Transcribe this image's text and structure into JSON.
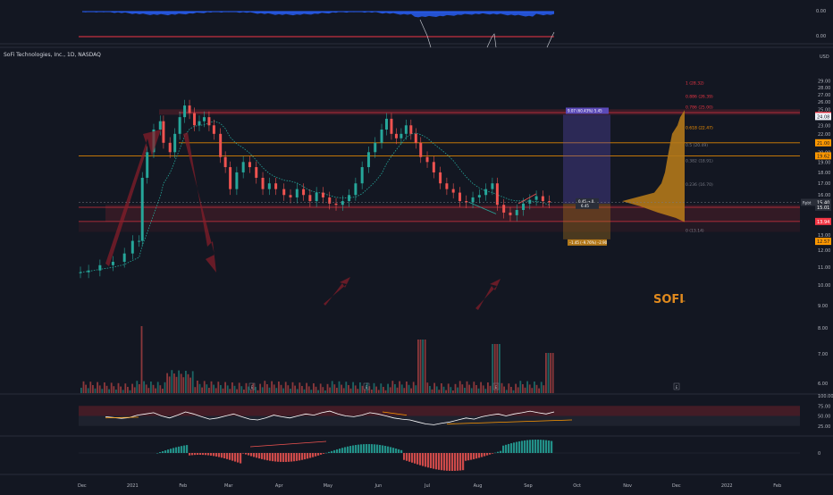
{
  "header": {
    "symbol_title": "SoFi Technologies, Inc., 1D, NASDAQ",
    "currency": "USD",
    "brand_watermark": "SOFI",
    "brand_dash": "-"
  },
  "top_panes": {
    "pane1_value": "0.00",
    "pane2_value": "0.00"
  },
  "chart_data": {
    "type": "candlestick",
    "title": "SoFi Technologies, Inc., 1D, NASDAQ",
    "y_axis": {
      "min": 6.0,
      "max": 29.0,
      "scale": "log",
      "unit": "USD",
      "ticks": [
        "29.00",
        "28.00",
        "27.00",
        "26.00",
        "25.00",
        "24.00",
        "23.00",
        "22.00",
        "21.00",
        "20.00",
        "19.00",
        "18.00",
        "17.00",
        "16.00",
        "15.00",
        "14.00",
        "13.00",
        "12.00",
        "11.00",
        "10.00",
        "9.00",
        "8.00",
        "7.00",
        "6.00"
      ]
    },
    "x_axis": {
      "ticks": [
        "Dec",
        "2021",
        "Feb",
        "Mar",
        "Apr",
        "May",
        "Jun",
        "Jul",
        "Aug",
        "Sep",
        "Oct",
        "Nov",
        "Dec",
        "2022",
        "Feb"
      ]
    },
    "price_path": [
      [
        "2020-11-30",
        10.7
      ],
      [
        "2020-12-05",
        10.8
      ],
      [
        "2020-12-12",
        11.1
      ],
      [
        "2020-12-20",
        11.3
      ],
      [
        "2020-12-27",
        11.8
      ],
      [
        "2021-01-01",
        12.6
      ],
      [
        "2021-01-05",
        12.6
      ],
      [
        "2021-01-07",
        17.5
      ],
      [
        "2021-01-10",
        20.0
      ],
      [
        "2021-01-14",
        22.5
      ],
      [
        "2021-01-18",
        23.5
      ],
      [
        "2021-01-20",
        21.0
      ],
      [
        "2021-01-24",
        20.0
      ],
      [
        "2021-01-27",
        22.0
      ],
      [
        "2021-01-30",
        24.0
      ],
      [
        "2021-02-02",
        25.5
      ],
      [
        "2021-02-05",
        24.5
      ],
      [
        "2021-02-08",
        23.0
      ],
      [
        "2021-02-11",
        23.5
      ],
      [
        "2021-02-14",
        24.0
      ],
      [
        "2021-02-17",
        23.0
      ],
      [
        "2021-02-20",
        22.0
      ],
      [
        "2021-02-24",
        19.5
      ],
      [
        "2021-02-27",
        18.5
      ],
      [
        "2021-03-02",
        16.5
      ],
      [
        "2021-03-06",
        18.0
      ],
      [
        "2021-03-10",
        19.0
      ],
      [
        "2021-03-14",
        18.5
      ],
      [
        "2021-03-18",
        17.5
      ],
      [
        "2021-03-22",
        16.5
      ],
      [
        "2021-03-26",
        17.0
      ],
      [
        "2021-03-30",
        16.5
      ],
      [
        "2021-04-04",
        16.0
      ],
      [
        "2021-04-08",
        15.8
      ],
      [
        "2021-04-12",
        16.5
      ],
      [
        "2021-04-16",
        16.0
      ],
      [
        "2021-04-20",
        15.5
      ],
      [
        "2021-04-24",
        16.2
      ],
      [
        "2021-04-28",
        15.8
      ],
      [
        "2021-05-02",
        15.3
      ],
      [
        "2021-05-06",
        15.2
      ],
      [
        "2021-05-10",
        15.5
      ],
      [
        "2021-05-14",
        16.0
      ],
      [
        "2021-05-18",
        17.0
      ],
      [
        "2021-05-22",
        18.5
      ],
      [
        "2021-05-26",
        20.0
      ],
      [
        "2021-05-30",
        21.0
      ],
      [
        "2021-06-03",
        22.5
      ],
      [
        "2021-06-06",
        23.8
      ],
      [
        "2021-06-09",
        22.0
      ],
      [
        "2021-06-12",
        21.5
      ],
      [
        "2021-06-15",
        22.0
      ],
      [
        "2021-06-18",
        23.0
      ],
      [
        "2021-06-21",
        22.0
      ],
      [
        "2021-06-24",
        21.0
      ],
      [
        "2021-06-27",
        19.5
      ],
      [
        "2021-07-01",
        19.0
      ],
      [
        "2021-07-05",
        18.0
      ],
      [
        "2021-07-09",
        17.0
      ],
      [
        "2021-07-13",
        16.5
      ],
      [
        "2021-07-17",
        16.2
      ],
      [
        "2021-07-21",
        15.5
      ],
      [
        "2021-07-25",
        15.4
      ],
      [
        "2021-07-29",
        15.8
      ],
      [
        "2021-08-02",
        16.0
      ],
      [
        "2021-08-06",
        16.5
      ],
      [
        "2021-08-10",
        17.0
      ],
      [
        "2021-08-13",
        15.2
      ],
      [
        "2021-08-17",
        14.6
      ],
      [
        "2021-08-21",
        14.4
      ],
      [
        "2021-08-25",
        14.8
      ],
      [
        "2021-08-29",
        15.3
      ],
      [
        "2021-09-02",
        15.6
      ],
      [
        "2021-09-06",
        15.9
      ],
      [
        "2021-09-10",
        15.5
      ],
      [
        "2021-09-14",
        15.4
      ]
    ],
    "horizontal_levels": [
      {
        "price": 24.58,
        "color": "#f23645"
      },
      {
        "price": 21.0,
        "color": "#ff9800"
      },
      {
        "price": 19.62,
        "color": "#ff9800"
      },
      {
        "price": 15.01,
        "color": "#f23645"
      },
      {
        "price": 13.94,
        "color": "#f23645"
      }
    ],
    "right_axis_labels": [
      {
        "price": 24.22,
        "text": "24.22",
        "color": "#f23645",
        "text_color": "#ffffff"
      },
      {
        "price": 24.08,
        "text": "24.08",
        "color": "#f0f3fa",
        "text_color": "#131722"
      },
      {
        "price": 21.0,
        "text": "21.00",
        "color": "#ff9800",
        "text_color": "#131722"
      },
      {
        "price": 19.62,
        "text": "19.62",
        "color": "#ff9800",
        "text_color": "#131722"
      },
      {
        "price": 15.3,
        "text": "15.30",
        "color": "#26a69a",
        "text_color": "#ffffff"
      },
      {
        "price": 15.4,
        "text": "15.40",
        "color": "#2a2e39",
        "text_color": "#ffffff"
      },
      {
        "price": 15.01,
        "text": "15.01",
        "color": "#2a2e39",
        "text_color": "#ffffff"
      },
      {
        "price": 13.94,
        "text": "13.94",
        "color": "#f23645",
        "text_color": "#ffffff"
      },
      {
        "price": 12.57,
        "text": "12.57",
        "color": "#ff9800",
        "text_color": "#131722"
      }
    ],
    "price_tag": {
      "price": 15.4,
      "text": "Rpbt"
    },
    "fib_labels": [
      {
        "price": 28.32,
        "text": "1 (28.32)"
      },
      {
        "price": 26.39,
        "text": "0.886 (26.39)"
      },
      {
        "price": 25.0,
        "text": "0.786 (25.00)"
      },
      {
        "price": 22.47,
        "text": "0.618 (22.47)"
      },
      {
        "price": 20.49,
        "text": "0.5 (20.49)"
      },
      {
        "price": 18.91,
        "text": "0.382 (18.91)"
      },
      {
        "price": 16.7,
        "text": "0.236 (16.70)"
      },
      {
        "price": 13.14,
        "text": "0 (13.14)"
      }
    ],
    "measure_box": {
      "top_label": "9.07 (60.43%) 5.45",
      "mid_label": "0.45 → 0",
      "mid_label2": "6.45",
      "bottom_label": "–1.45 (–9.76%) –2.90"
    },
    "volume_markers": [
      "E",
      "E",
      "E",
      "E"
    ],
    "rsi": {
      "ticks": [
        "100.00",
        "75.00",
        "50.00",
        "25.00"
      ],
      "values": [
        48,
        46,
        44,
        46,
        52,
        55,
        58,
        50,
        45,
        52,
        60,
        55,
        48,
        42,
        45,
        50,
        55,
        48,
        42,
        40,
        45,
        52,
        48,
        45,
        50,
        55,
        52,
        58,
        62,
        55,
        50,
        48,
        52,
        58,
        55,
        50,
        45,
        42,
        40,
        35,
        30,
        28,
        32,
        35,
        40,
        45,
        42,
        48,
        52,
        55,
        50,
        55,
        58,
        62,
        58,
        55,
        60
      ]
    },
    "macd": {
      "ticks": [
        "0"
      ]
    }
  }
}
